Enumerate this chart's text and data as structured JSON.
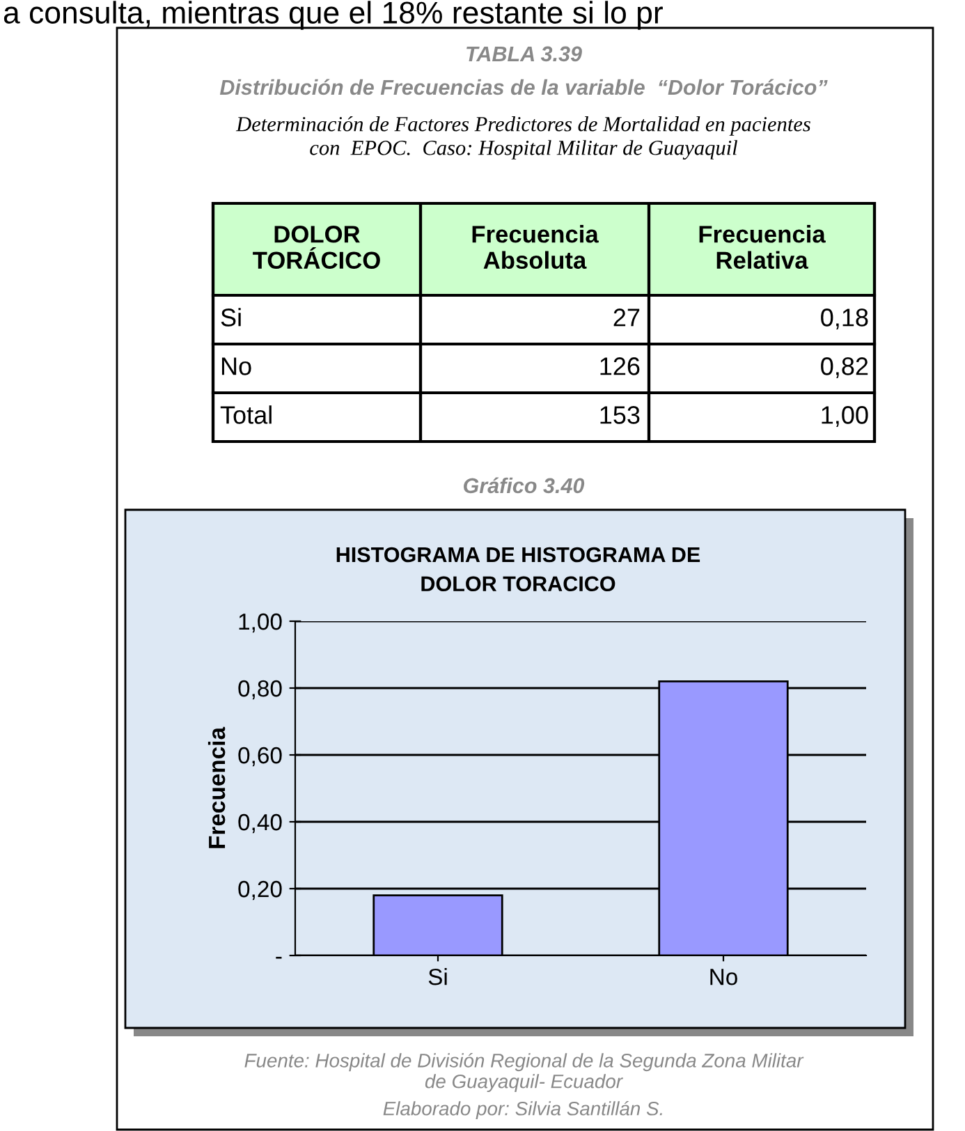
{
  "chart_data": {
    "type": "bar",
    "title": "HISTOGRAMA DE HISTOGRAMA DE\nDOLOR TORACICO",
    "ylabel": "Frecuencia",
    "categories": [
      "Si",
      "No"
    ],
    "values": [
      0.18,
      0.82
    ],
    "color": "#9999ff",
    "ylim": [
      0,
      1
    ],
    "yticks": [
      {
        "value": 0,
        "label": "-"
      },
      {
        "value": 0.2,
        "label": "0,20"
      },
      {
        "value": 0.4,
        "label": "0,40"
      },
      {
        "value": 0.6,
        "label": "0,60"
      },
      {
        "value": 0.8,
        "label": "0,80"
      },
      {
        "value": 1.0,
        "label": "1,00"
      }
    ],
    "grid": "y",
    "annotations": [
      "a consulta, mientras que el 18% restante si lo pr",
      "TABLA 3.39",
      "Distribución de Frecuencias de la variable  “Dolor Torácico”",
      "Determinación de Factores Predictores de Mortalidad en pacientes\ncon  EPOC.  Caso: Hospital Militar de Guayaquil",
      "DOLOR\nTORÁCICO",
      "Frecuencia\nAbsoluta",
      "Frecuencia\nRelativa",
      "27",
      "126",
      "Total",
      "153",
      "1,00",
      "Gráfico 3.40",
      "Fuente: Hospital de División Regional de la Segunda Zona Militar\nde Guayaquil- Ecuador",
      "Elaborado por: Silvia Santillán S.",
      "0,18",
      "0,82"
    ]
  }
}
